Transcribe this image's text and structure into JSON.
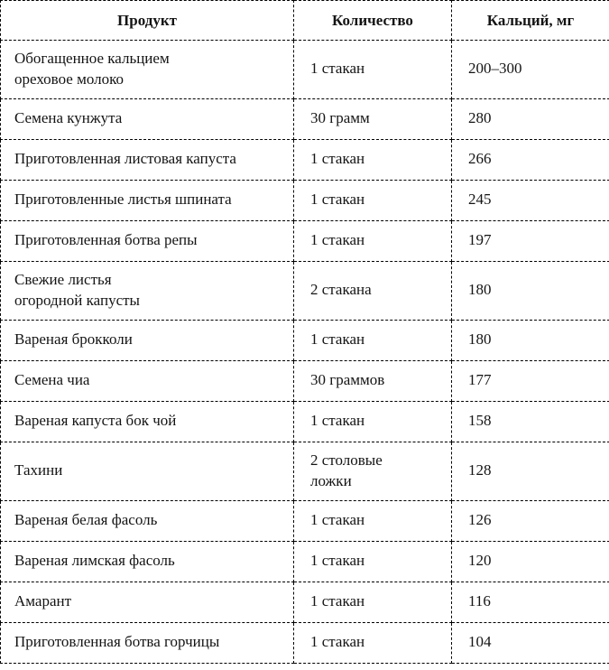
{
  "colors": {
    "background": "#ffffff",
    "border": "#000000",
    "text": "#141414"
  },
  "table": {
    "headers": {
      "product": "Продукт",
      "quantity": "Количество",
      "calcium": "Кальций, мг"
    },
    "rows": [
      {
        "product": "Обогащенное кальцием\nореховое молоко",
        "quantity": "1 стакан",
        "calcium_mg": "200–300"
      },
      {
        "product": "Семена кунжута",
        "quantity": "30 грамм",
        "calcium_mg": "280"
      },
      {
        "product": "Приготовленная листовая капуста",
        "quantity": "1 стакан",
        "calcium_mg": "266"
      },
      {
        "product": "Приготовленные листья шпината",
        "quantity": "1 стакан",
        "calcium_mg": "245"
      },
      {
        "product": "Приготовленная ботва репы",
        "quantity": "1 стакан",
        "calcium_mg": "197"
      },
      {
        "product": "Свежие листья\nогородной капусты",
        "quantity": "2 стакана",
        "calcium_mg": "180"
      },
      {
        "product": "Вареная брокколи",
        "quantity": "1 стакан",
        "calcium_mg": "180"
      },
      {
        "product": "Семена чиа",
        "quantity": "30 граммов",
        "calcium_mg": "177"
      },
      {
        "product": "Вареная капуста бок чой",
        "quantity": "1 стакан",
        "calcium_mg": "158"
      },
      {
        "product": "Тахини",
        "quantity": "2 столовые\nложки",
        "calcium_mg": "128"
      },
      {
        "product": "Вареная белая фасоль",
        "quantity": "1 стакан",
        "calcium_mg": "126"
      },
      {
        "product": "Вареная лимская фасоль",
        "quantity": "1 стакан",
        "calcium_mg": "120"
      },
      {
        "product": "Амарант",
        "quantity": "1 стакан",
        "calcium_mg": "116"
      },
      {
        "product": "Приготовленная ботва горчицы",
        "quantity": "1 стакан",
        "calcium_mg": "104"
      }
    ]
  }
}
